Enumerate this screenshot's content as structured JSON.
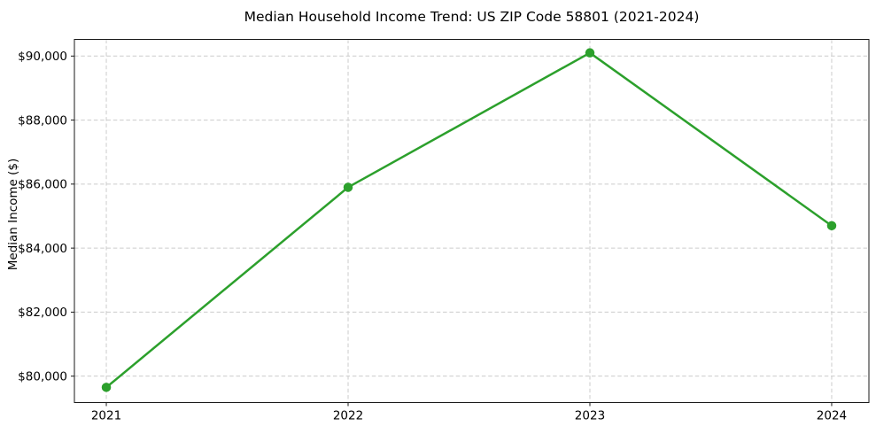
{
  "chart_data": {
    "type": "line",
    "title": "Median Household Income Trend: US ZIP Code 58801 (2021-2024)",
    "xlabel": "",
    "ylabel": "Median Income ($)",
    "x": [
      2021,
      2022,
      2023,
      2024
    ],
    "series": [
      {
        "name": "Median household income",
        "values": [
          79650,
          85900,
          90100,
          84700
        ]
      }
    ],
    "xticks": [
      {
        "value": 2021,
        "label": "2021"
      },
      {
        "value": 2022,
        "label": "2022"
      },
      {
        "value": 2023,
        "label": "2023"
      },
      {
        "value": 2024,
        "label": "2024"
      }
    ],
    "yticks": [
      {
        "value": 80000,
        "label": "$80,000"
      },
      {
        "value": 82000,
        "label": "$82,000"
      },
      {
        "value": 84000,
        "label": "$84,000"
      },
      {
        "value": 86000,
        "label": "$86,000"
      },
      {
        "value": 88000,
        "label": "$88,000"
      },
      {
        "value": 90000,
        "label": "$90,000"
      }
    ],
    "xlim": [
      2020.868,
      2024.154
    ],
    "ylim": [
      79175,
      90520
    ],
    "grid": true,
    "grid_style": "dashed",
    "legend_position": "none",
    "colors": {
      "line": "#2ca02c",
      "marker": "#2ca02c",
      "grid": "#cccccc",
      "spine": "#1a1a1a",
      "text": "#000000",
      "background": "#ffffff"
    },
    "line_width": 2.5,
    "marker": "circle",
    "marker_radius": 5.25
  }
}
